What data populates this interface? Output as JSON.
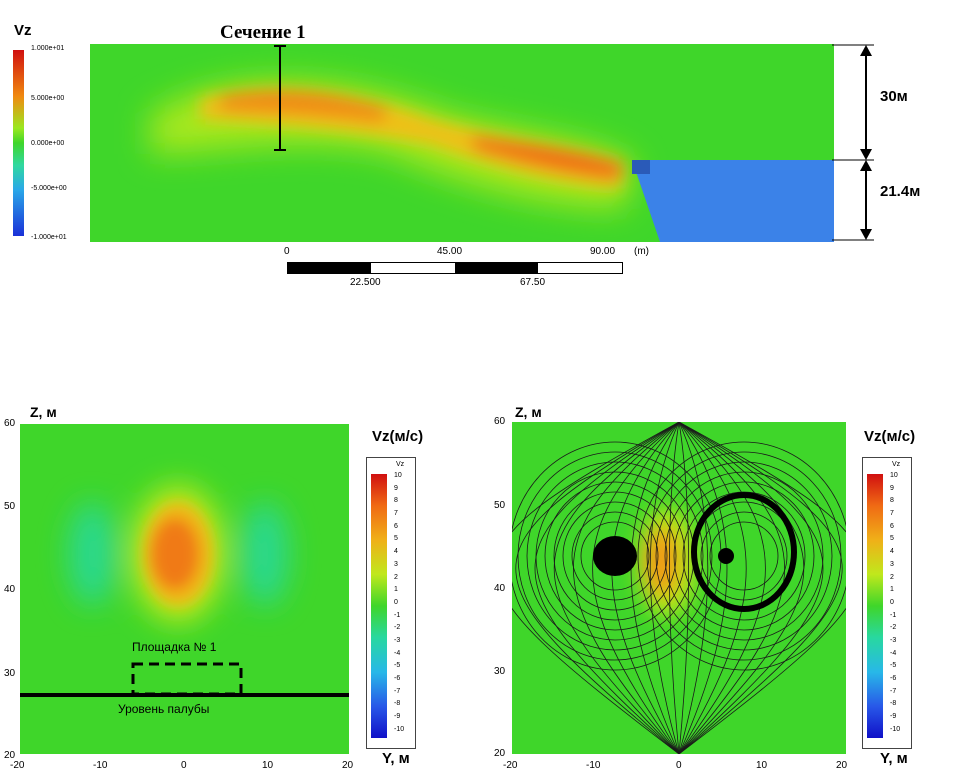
{
  "top": {
    "legend_title": "Vz",
    "legend_ticks": [
      "1.000e+01",
      "5.000e+00",
      "0.000e+00",
      "-5.000e+00",
      "-1.000e+01"
    ],
    "section_label": "Сечение 1",
    "dim_upper": "30м",
    "dim_lower": "21.4м",
    "scale_upper_labels": [
      "0",
      "45.00",
      "90.00"
    ],
    "scale_unit": "(m)",
    "scale_lower_labels": [
      "22.500",
      "67.50"
    ]
  },
  "left": {
    "z_label": "Z, м",
    "y_label": "Y, м",
    "z_ticks": [
      "60",
      "50",
      "40",
      "30",
      "20"
    ],
    "y_ticks": [
      "-20",
      "-10",
      "0",
      "10",
      "20"
    ],
    "title": "Vz(м/с)",
    "colorbar_header": "Vz",
    "colorbar_ticks": [
      "10",
      "9",
      "8",
      "7",
      "6",
      "5",
      "4",
      "3",
      "2",
      "1",
      "0",
      "-1",
      "-2",
      "-3",
      "-4",
      "-5",
      "-6",
      "-7",
      "-8",
      "-9",
      "-10"
    ],
    "platform_label": "Площадка № 1",
    "deck_label": "Уровень палубы"
  },
  "right": {
    "z_label": "Z, м",
    "y_label": "Y, м",
    "z_ticks": [
      "60",
      "50",
      "40",
      "30",
      "20"
    ],
    "y_ticks": [
      "-20",
      "-10",
      "0",
      "10",
      "20"
    ],
    "title": "Vz(м/с)",
    "colorbar_header": "Vz",
    "colorbar_ticks": [
      "10",
      "9",
      "8",
      "7",
      "6",
      "5",
      "4",
      "3",
      "2",
      "1",
      "0",
      "-1",
      "-2",
      "-3",
      "-4",
      "-5",
      "-6",
      "-7",
      "-8",
      "-9",
      "-10"
    ]
  },
  "colors": {
    "field_green": "#3fd62a",
    "positive_orange": "#f07a16",
    "negative_cyan": "#27d8a8",
    "hull_blue": "#3b82e8"
  }
}
